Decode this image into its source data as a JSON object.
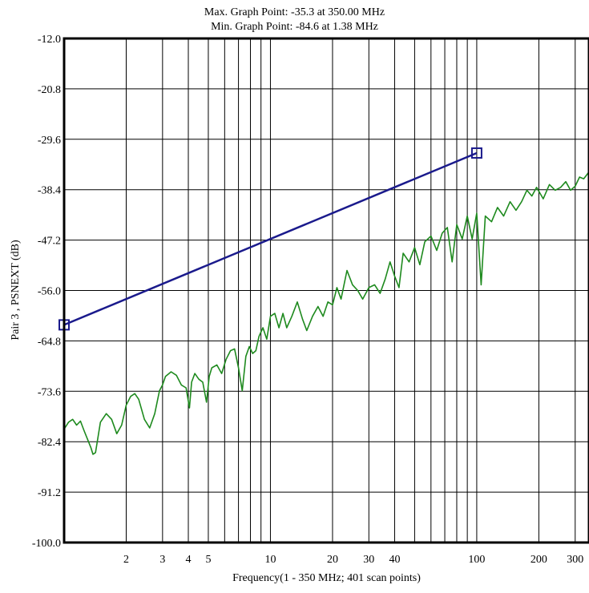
{
  "chart_data": {
    "type": "line",
    "title_lines": [
      "Max. Graph Point: -35.3 at 350.00 MHz",
      "Min. Graph Point: -84.6 at 1.38 MHz"
    ],
    "xlabel": "Frequency(1 - 350 MHz; 401 scan points)",
    "ylabel": "Pair 3 , PSNEXT (dB)",
    "x_scale": "log",
    "xlim": [
      1,
      350
    ],
    "ylim": [
      -100,
      -12
    ],
    "y_ticks": [
      "-12.0",
      "-20.8",
      "-29.6",
      "-38.4",
      "-47.2",
      "-56.0",
      "-64.8",
      "-73.6",
      "-82.4",
      "-91.2",
      "-100.0"
    ],
    "x_ticks": [
      {
        "value": 2,
        "label": "2"
      },
      {
        "value": 3,
        "label": "3"
      },
      {
        "value": 4,
        "label": "4"
      },
      {
        "value": 5,
        "label": "5"
      },
      {
        "value": 10,
        "label": "10"
      },
      {
        "value": 20,
        "label": "20"
      },
      {
        "value": 30,
        "label": "30"
      },
      {
        "value": 40,
        "label": "40"
      },
      {
        "value": 100,
        "label": "100"
      },
      {
        "value": 200,
        "label": "200"
      },
      {
        "value": 300,
        "label": "300"
      }
    ],
    "grid": true,
    "series": [
      {
        "color": "#1a1a8c",
        "markers": "square",
        "x": [
          1,
          100
        ],
        "y": [
          -62.0,
          -32.0
        ]
      },
      {
        "color": "#1e8a1e",
        "x": [
          1.0,
          1.05,
          1.1,
          1.15,
          1.2,
          1.25,
          1.3,
          1.35,
          1.38,
          1.42,
          1.5,
          1.6,
          1.7,
          1.8,
          1.9,
          2.0,
          2.1,
          2.2,
          2.3,
          2.45,
          2.6,
          2.75,
          2.9,
          3.0,
          3.1,
          3.3,
          3.5,
          3.7,
          3.9,
          4.05,
          4.15,
          4.3,
          4.5,
          4.7,
          4.9,
          5.05,
          5.2,
          5.5,
          5.8,
          6.1,
          6.4,
          6.7,
          7.0,
          7.3,
          7.6,
          7.9,
          8.2,
          8.5,
          8.8,
          9.2,
          9.6,
          10.0,
          10.5,
          11.0,
          11.5,
          12.0,
          12.7,
          13.5,
          14.3,
          15.0,
          16.0,
          17.0,
          18.0,
          19.0,
          20.0,
          21.0,
          22.0,
          23.5,
          25.0,
          26.5,
          28.0,
          30.0,
          32.0,
          34.0,
          36.0,
          38.0,
          40.0,
          42.0,
          44.0,
          47.0,
          50.0,
          53.0,
          56.0,
          60.0,
          64.0,
          68.0,
          72.0,
          76.0,
          80.0,
          85.0,
          90.0,
          95.0,
          100.0,
          105.0,
          110.0,
          118.0,
          126.0,
          135.0,
          145.0,
          155.0,
          165.0,
          175.0,
          185.0,
          195.0,
          210.0,
          225.0,
          240.0,
          255.0,
          270.0,
          285.0,
          300.0,
          315.0,
          330.0,
          350.0
        ],
        "y": [
          -80.2,
          -79.0,
          -78.5,
          -79.5,
          -78.8,
          -80.5,
          -82.0,
          -83.5,
          -84.6,
          -84.3,
          -79.0,
          -77.5,
          -78.5,
          -81.0,
          -79.5,
          -76.0,
          -74.5,
          -74.0,
          -75.0,
          -78.5,
          -80.0,
          -77.5,
          -73.5,
          -72.5,
          -71.0,
          -70.2,
          -70.8,
          -72.5,
          -73.0,
          -76.5,
          -72.0,
          -70.5,
          -71.5,
          -72.0,
          -75.5,
          -71.0,
          -69.5,
          -69.0,
          -70.5,
          -68.0,
          -66.5,
          -66.2,
          -69.5,
          -73.5,
          -67.5,
          -65.8,
          -67.0,
          -66.5,
          -64.0,
          -62.5,
          -64.5,
          -60.5,
          -60.0,
          -62.5,
          -60.0,
          -62.5,
          -60.5,
          -58.0,
          -61.0,
          -63.0,
          -60.5,
          -58.8,
          -60.5,
          -58.0,
          -58.5,
          -55.5,
          -57.5,
          -52.5,
          -55.0,
          -56.0,
          -57.5,
          -55.5,
          -55.0,
          -56.5,
          -54.0,
          -51.0,
          -53.5,
          -55.5,
          -49.5,
          -51.0,
          -48.5,
          -51.5,
          -47.5,
          -46.5,
          -49.0,
          -46.0,
          -45.0,
          -51.0,
          -44.5,
          -47.0,
          -43.0,
          -47.0,
          -42.5,
          -55.0,
          -43.0,
          -44.0,
          -41.5,
          -43.0,
          -40.5,
          -42.0,
          -40.5,
          -38.5,
          -39.5,
          -38.0,
          -40.0,
          -37.5,
          -38.5,
          -38.0,
          -37.0,
          -38.5,
          -37.8,
          -36.2,
          -36.5,
          -35.3
        ]
      }
    ]
  }
}
